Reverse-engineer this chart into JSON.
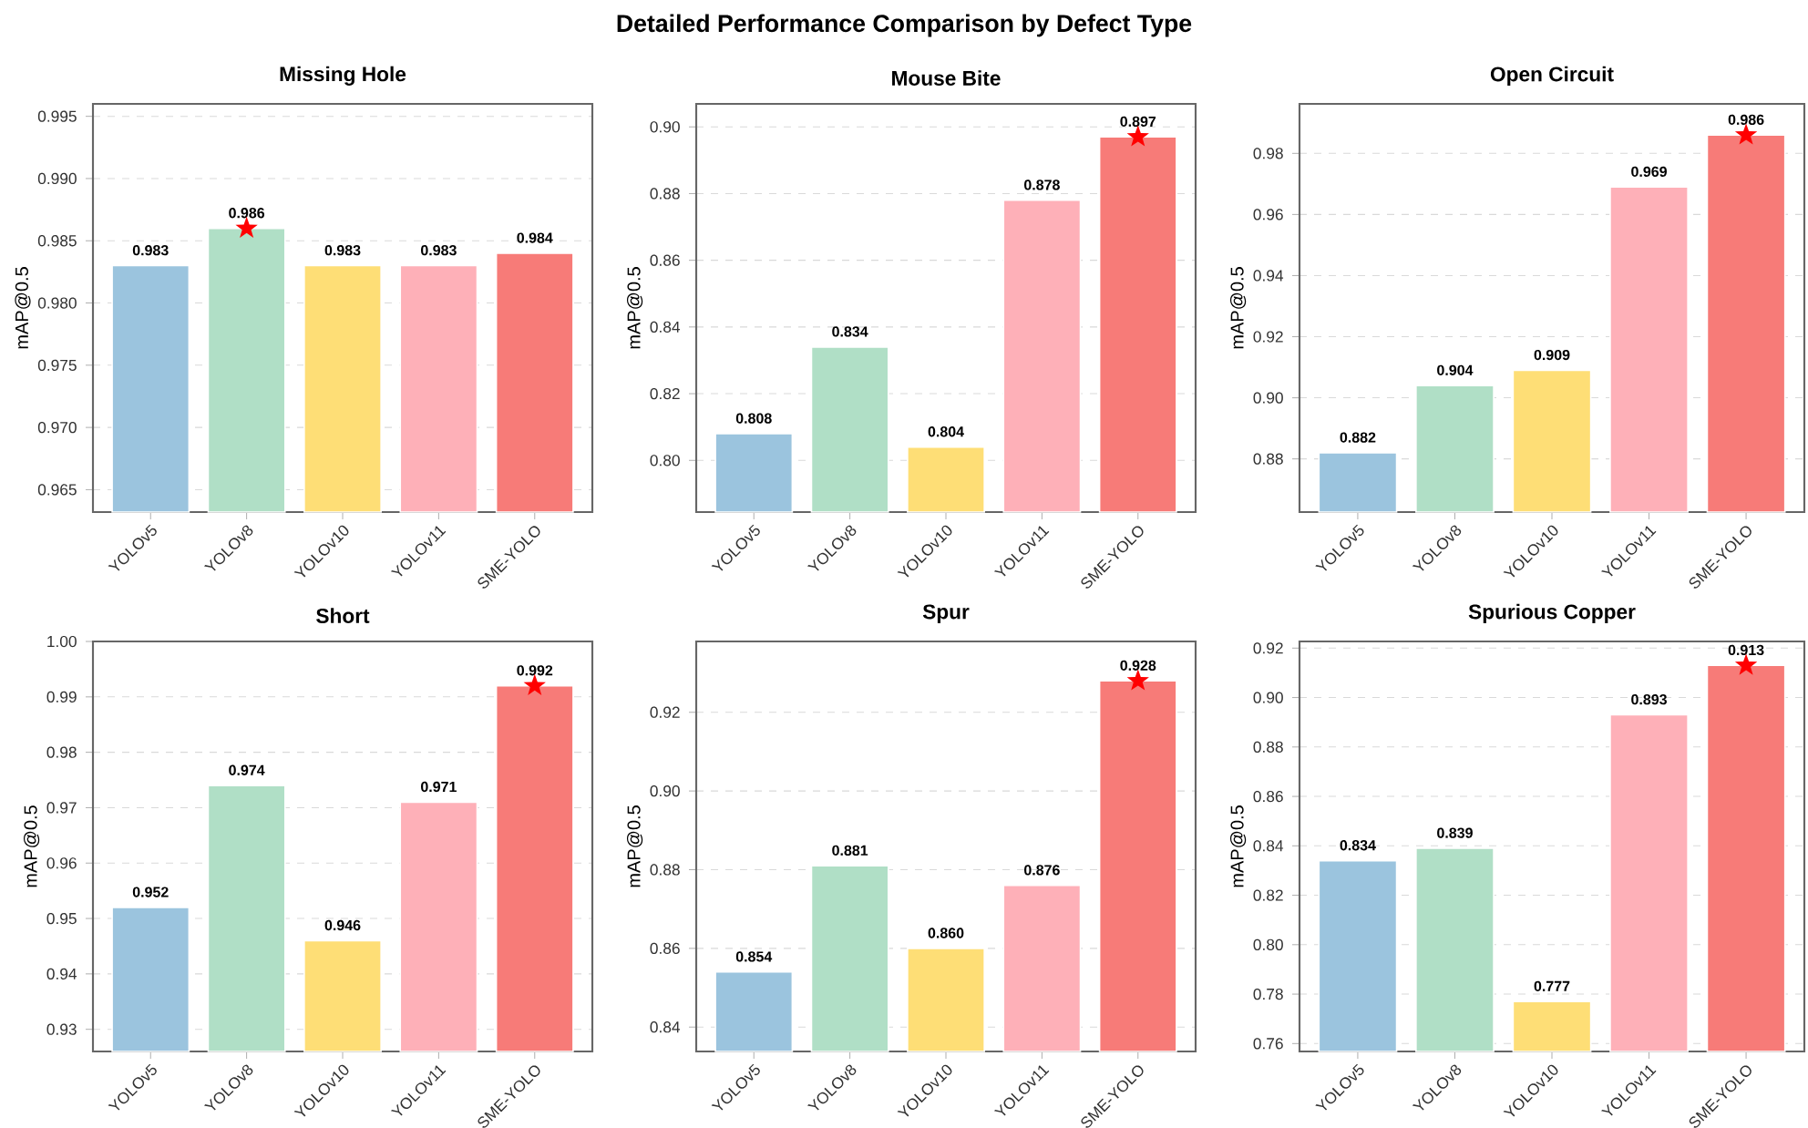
{
  "chart_data": [
    {
      "type": "bar",
      "title": "Missing Hole",
      "ylabel": "mAP@0.5",
      "annotations": [
        "Detailed Performance Comparison by Defect Type"
      ],
      "categories": [
        "YOLOv5",
        "YOLOv8",
        "YOLOv10",
        "YOLOv11",
        "SME-YOLO"
      ],
      "ylim": [
        0.9632,
        0.996
      ],
      "yticks": [
        0.965,
        {
          "value": 0.97,
          "label": "0.970"
        },
        0.975,
        {
          "value": 0.98,
          "label": "0.980"
        },
        0.985,
        {
          "value": 0.99,
          "label": "0.990"
        },
        0.995
      ],
      "grid": "y",
      "series": [
        {
          "colors": [
            "#9bc4de",
            "#b0dfc6",
            "#fede76",
            "#feb0b8",
            "#f77b78"
          ],
          "values": [
            0.983,
            0.986,
            0.983,
            0.983,
            0.984
          ],
          "value_labels": [
            "0.983",
            "0.986",
            "0.983",
            "0.983",
            "0.984"
          ]
        },
        {
          "type": "scatter",
          "x": [
            "YOLOv8"
          ],
          "values": [
            0.986
          ],
          "color": "#ff0000",
          "marker": "star"
        }
      ]
    },
    {
      "type": "bar",
      "title": "Mouse Bite",
      "ylabel": "mAP@0.5",
      "categories": [
        "YOLOv5",
        "YOLOv8",
        "YOLOv10",
        "YOLOv11",
        "SME-YOLO"
      ],
      "ylim": [
        0.7845,
        0.9069
      ],
      "yticks": [
        {
          "value": 0.8,
          "label": "0.80"
        },
        0.82,
        0.84,
        0.86,
        0.88,
        {
          "value": 0.9,
          "label": "0.90"
        }
      ],
      "grid": "y",
      "series": [
        {
          "colors": [
            "#9bc4de",
            "#b0dfc6",
            "#fede76",
            "#feb0b8",
            "#f77b78"
          ],
          "values": [
            0.808,
            0.834,
            0.804,
            0.878,
            0.897
          ],
          "value_labels": [
            "0.808",
            "0.834",
            "0.804",
            "0.878",
            "0.897"
          ]
        },
        {
          "type": "scatter",
          "x": [
            "SME-YOLO"
          ],
          "values": [
            0.897
          ],
          "color": "#ff0000",
          "marker": "star"
        }
      ]
    },
    {
      "type": "bar",
      "title": "Open Circuit",
      "ylabel": "mAP@0.5",
      "categories": [
        "YOLOv5",
        "YOLOv8",
        "YOLOv10",
        "YOLOv11",
        "SME-YOLO"
      ],
      "ylim": [
        0.8626,
        0.9962
      ],
      "yticks": [
        0.88,
        {
          "value": 0.9,
          "label": "0.90"
        },
        0.92,
        0.94,
        0.96,
        0.98
      ],
      "grid": "y",
      "series": [
        {
          "colors": [
            "#9bc4de",
            "#b0dfc6",
            "#fede76",
            "#feb0b8",
            "#f77b78"
          ],
          "values": [
            0.882,
            0.904,
            0.909,
            0.969,
            0.986
          ],
          "value_labels": [
            "0.882",
            "0.904",
            "0.909",
            "0.969",
            "0.986"
          ]
        },
        {
          "type": "scatter",
          "x": [
            "SME-YOLO"
          ],
          "values": [
            0.986
          ],
          "color": "#ff0000",
          "marker": "star"
        }
      ]
    },
    {
      "type": "bar",
      "title": "Short",
      "ylabel": "mAP@0.5",
      "categories": [
        "YOLOv5",
        "YOLOv8",
        "YOLOv10",
        "YOLOv11",
        "SME-YOLO"
      ],
      "ylim": [
        0.926,
        1.0
      ],
      "yticks": [
        0.93,
        0.94,
        0.95,
        0.96,
        0.97,
        0.98,
        0.99,
        {
          "value": 1.0,
          "label": "1.00"
        }
      ],
      "grid": "y",
      "series": [
        {
          "colors": [
            "#9bc4de",
            "#b0dfc6",
            "#fede76",
            "#feb0b8",
            "#f77b78"
          ],
          "values": [
            0.952,
            0.974,
            0.946,
            0.971,
            0.992
          ],
          "value_labels": [
            "0.952",
            "0.974",
            "0.946",
            "0.971",
            "0.992"
          ]
        },
        {
          "type": "scatter",
          "x": [
            "SME-YOLO"
          ],
          "values": [
            0.992
          ],
          "color": "#ff0000",
          "marker": "star"
        }
      ]
    },
    {
      "type": "bar",
      "title": "Spur",
      "ylabel": "mAP@0.5",
      "categories": [
        "YOLOv5",
        "YOLOv8",
        "YOLOv10",
        "YOLOv11",
        "SME-YOLO"
      ],
      "ylim": [
        0.8338,
        0.938
      ],
      "yticks": [
        0.84,
        0.86,
        0.88,
        {
          "value": 0.9,
          "label": "0.90"
        },
        0.92
      ],
      "grid": "y",
      "series": [
        {
          "colors": [
            "#9bc4de",
            "#b0dfc6",
            "#fede76",
            "#feb0b8",
            "#f77b78"
          ],
          "values": [
            0.854,
            0.881,
            0.86,
            0.876,
            0.928
          ],
          "value_labels": [
            "0.854",
            "0.881",
            "0.860",
            "0.876",
            "0.928"
          ]
        },
        {
          "type": "scatter",
          "x": [
            "SME-YOLO"
          ],
          "values": [
            0.928
          ],
          "color": "#ff0000",
          "marker": "star"
        }
      ]
    },
    {
      "type": "bar",
      "title": "Spurious Copper",
      "ylabel": "mAP@0.5",
      "categories": [
        "YOLOv5",
        "YOLOv8",
        "YOLOv10",
        "YOLOv11",
        "SME-YOLO"
      ],
      "ylim": [
        0.7568,
        0.9227
      ],
      "yticks": [
        0.76,
        0.78,
        {
          "value": 0.8,
          "label": "0.80"
        },
        0.82,
        0.84,
        0.86,
        0.88,
        {
          "value": 0.9,
          "label": "0.90"
        },
        0.92
      ],
      "grid": "y",
      "series": [
        {
          "colors": [
            "#9bc4de",
            "#b0dfc6",
            "#fede76",
            "#feb0b8",
            "#f77b78"
          ],
          "values": [
            0.834,
            0.839,
            0.777,
            0.893,
            0.913
          ],
          "value_labels": [
            "0.834",
            "0.839",
            "0.777",
            "0.893",
            "0.913"
          ]
        },
        {
          "type": "scatter",
          "x": [
            "SME-YOLO"
          ],
          "values": [
            0.913
          ],
          "color": "#ff0000",
          "marker": "star"
        }
      ]
    }
  ]
}
